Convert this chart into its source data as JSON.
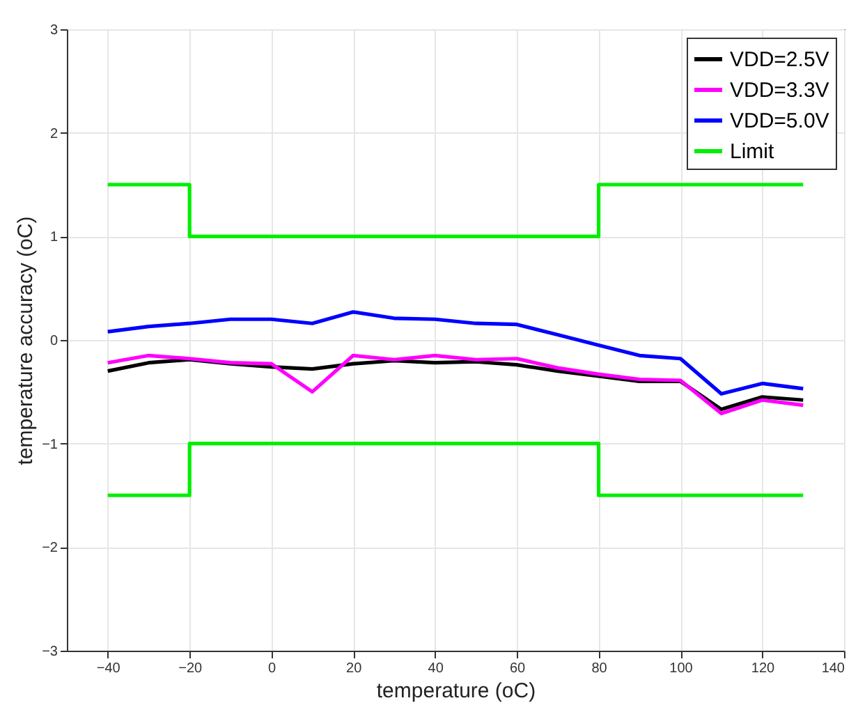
{
  "chart_data": {
    "type": "line",
    "xlabel": "temperature (oC)",
    "ylabel": "temperature accuracy (oC)",
    "xlim": [
      -50,
      140
    ],
    "xticks": [
      -40,
      -20,
      0,
      20,
      40,
      60,
      80,
      100,
      120,
      140
    ],
    "ylim": [
      -3,
      3
    ],
    "yticks": [
      -3,
      -2,
      -1,
      0,
      1,
      2,
      3
    ],
    "grid": true,
    "legend": "top right",
    "line_style": "solid",
    "x": [
      -40,
      -30,
      -20,
      -10,
      0,
      10,
      20,
      30,
      40,
      50,
      60,
      70,
      80,
      90,
      100,
      110,
      120,
      130
    ],
    "series": [
      {
        "name": "VDD=2.5V",
        "color": "#000000",
        "values": [
          -0.3,
          -0.22,
          -0.19,
          -0.23,
          -0.26,
          -0.28,
          -0.23,
          -0.2,
          -0.22,
          -0.21,
          -0.24,
          -0.3,
          -0.35,
          -0.4,
          -0.4,
          -0.67,
          -0.55,
          -0.58
        ]
      },
      {
        "name": "VDD=3.3V",
        "color": "#ff00ff",
        "values": [
          -0.22,
          -0.15,
          -0.18,
          -0.22,
          -0.23,
          -0.5,
          -0.15,
          -0.19,
          -0.15,
          -0.19,
          -0.18,
          -0.27,
          -0.33,
          -0.38,
          -0.39,
          -0.71,
          -0.58,
          -0.63
        ]
      },
      {
        "name": "VDD=5.0V",
        "color": "#0000ff",
        "values": [
          0.08,
          0.13,
          0.16,
          0.2,
          0.2,
          0.16,
          0.27,
          0.21,
          0.2,
          0.16,
          0.15,
          0.05,
          -0.05,
          -0.15,
          -0.18,
          -0.52,
          -0.42,
          -0.47
        ]
      },
      {
        "name": "Limit",
        "color": "#00ee00",
        "x": [
          -40,
          -20,
          -20,
          80,
          80,
          130
        ],
        "values": [
          1.5,
          1.5,
          1,
          1,
          1.5,
          1.5
        ]
      },
      {
        "color": "#00ee00",
        "x": [
          -40,
          -20,
          -20,
          80,
          80,
          130
        ],
        "values": [
          -1.5,
          -1.5,
          -1,
          -1,
          -1.5,
          -1.5
        ]
      }
    ]
  }
}
